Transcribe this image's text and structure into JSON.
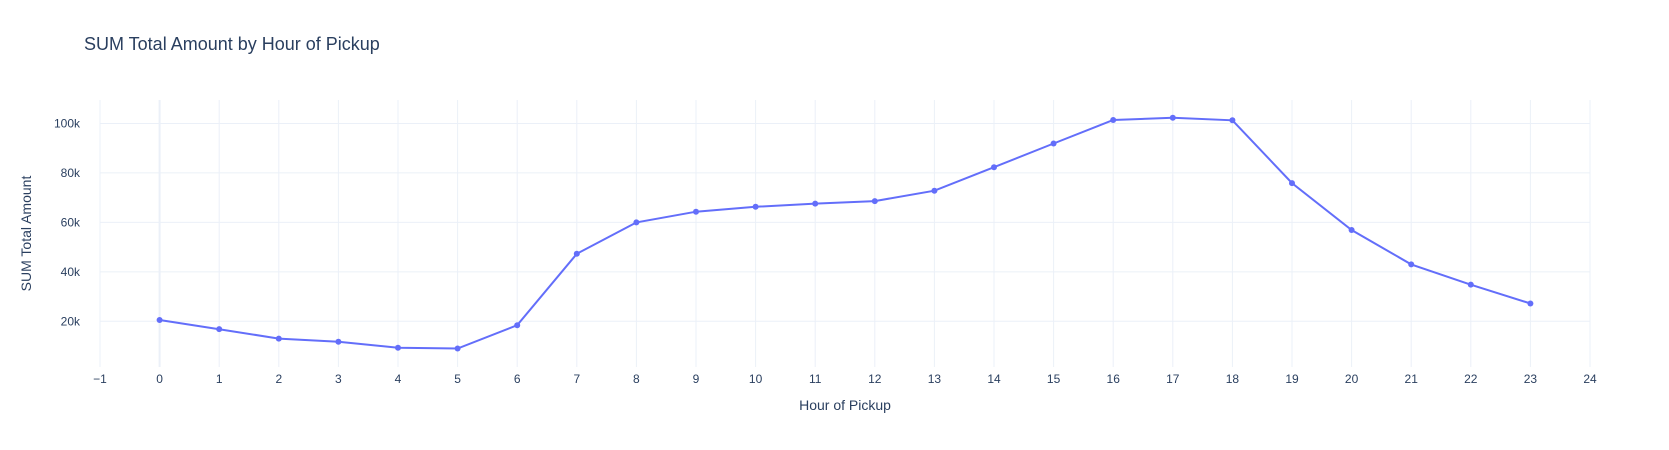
{
  "chart_data": {
    "type": "line",
    "title": "SUM Total Amount by Hour of Pickup",
    "xlabel": "Hour of Pickup",
    "ylabel": "SUM Total Amount",
    "xlim": [
      -1,
      24
    ],
    "ylim": [
      1500,
      109500
    ],
    "x_ticks": [
      -1,
      0,
      1,
      2,
      3,
      4,
      5,
      6,
      7,
      8,
      9,
      10,
      11,
      12,
      13,
      14,
      15,
      16,
      17,
      18,
      19,
      20,
      21,
      22,
      23,
      24
    ],
    "x_tick_labels": [
      "−1",
      "0",
      "1",
      "2",
      "3",
      "4",
      "5",
      "6",
      "7",
      "8",
      "9",
      "10",
      "11",
      "12",
      "13",
      "14",
      "15",
      "16",
      "17",
      "18",
      "19",
      "20",
      "21",
      "22",
      "23",
      "24"
    ],
    "y_ticks": [
      20000,
      40000,
      60000,
      80000,
      100000
    ],
    "y_tick_labels": [
      "20k",
      "40k",
      "60k",
      "80k",
      "100k"
    ],
    "grid": true,
    "line_color": "#636efa",
    "series": [
      {
        "x": [
          0,
          1,
          2,
          3,
          4,
          5,
          6,
          7,
          8,
          9,
          10,
          11,
          12,
          13,
          14,
          15,
          16,
          17,
          18,
          19,
          20,
          21,
          22,
          23
        ],
        "values": [
          20500,
          16800,
          13000,
          11700,
          9300,
          9000,
          18400,
          47300,
          60000,
          64300,
          66300,
          67600,
          68600,
          72800,
          82300,
          91900,
          101400,
          102300,
          101300,
          75900,
          56900,
          43000,
          34800,
          27200
        ]
      }
    ]
  }
}
